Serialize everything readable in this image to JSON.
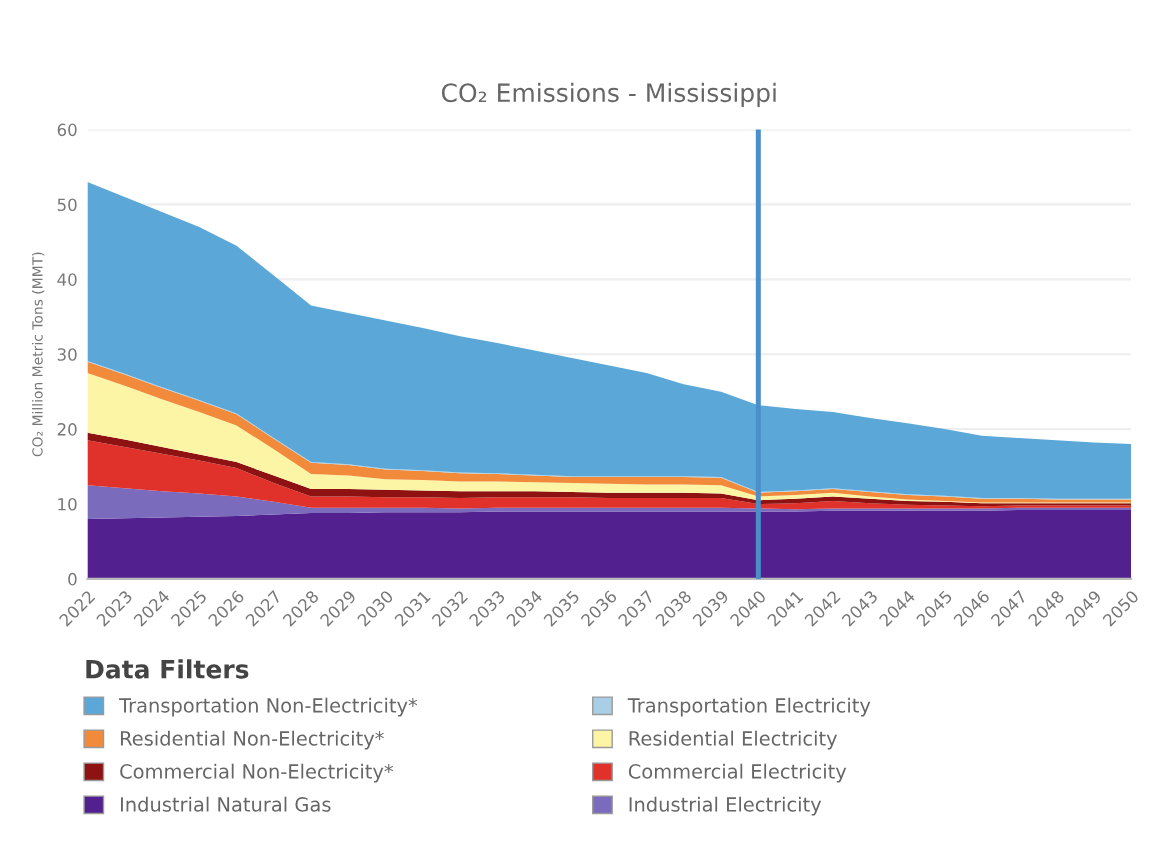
{
  "chart_data": {
    "type": "area",
    "title": "CO₂ Emissions - Mississippi",
    "ylabel": "CO₂ Million Metric Tons (MMT)",
    "legend_title": "Data Filters",
    "stacked": true,
    "legend": "bottom",
    "grid": "y",
    "x": [
      2022,
      2023,
      2024,
      2025,
      2026,
      2027,
      2028,
      2029,
      2030,
      2031,
      2032,
      2033,
      2034,
      2035,
      2036,
      2037,
      2038,
      2039,
      2040,
      2041,
      2042,
      2043,
      2044,
      2045,
      2046,
      2047,
      2048,
      2049,
      2050
    ],
    "xlim": [
      2022,
      2050
    ],
    "xticks": [
      2022,
      2023,
      2024,
      2025,
      2026,
      2027,
      2028,
      2029,
      2030,
      2031,
      2032,
      2033,
      2034,
      2035,
      2036,
      2037,
      2038,
      2039,
      2040,
      2041,
      2042,
      2043,
      2044,
      2045,
      2046,
      2047,
      2048,
      2049,
      2050
    ],
    "ylim": [
      0,
      60
    ],
    "yticks": [
      0,
      10,
      20,
      30,
      40,
      50,
      60
    ],
    "ref_lines": [
      {
        "axis": "x",
        "value": 2040,
        "color": "#4a8fc9"
      }
    ],
    "series": [
      {
        "name": "Industrial Natural Gas",
        "color": "#52208f",
        "values": [
          8.0,
          8.1,
          8.2,
          8.3,
          8.4,
          8.6,
          8.8,
          8.8,
          8.9,
          8.9,
          8.9,
          9.0,
          9.0,
          9.0,
          9.0,
          9.0,
          9.0,
          9.0,
          9.0,
          9.0,
          9.1,
          9.1,
          9.1,
          9.1,
          9.1,
          9.2,
          9.2,
          9.2,
          9.2
        ]
      },
      {
        "name": "Industrial Electricity",
        "color": "#7b6bbd",
        "values": [
          4.5,
          4.0,
          3.5,
          3.1,
          2.6,
          1.7,
          0.7,
          0.7,
          0.6,
          0.6,
          0.5,
          0.5,
          0.5,
          0.5,
          0.5,
          0.5,
          0.5,
          0.5,
          0.4,
          0.3,
          0.3,
          0.3,
          0.3,
          0.3,
          0.3,
          0.3,
          0.3,
          0.3,
          0.3
        ]
      },
      {
        "name": "Commercial Electricity",
        "color": "#e0322b",
        "values": [
          6.0,
          5.5,
          5.0,
          4.4,
          3.8,
          2.5,
          1.5,
          1.5,
          1.4,
          1.4,
          1.4,
          1.4,
          1.4,
          1.4,
          1.3,
          1.3,
          1.3,
          1.3,
          0.6,
          0.8,
          1.0,
          0.7,
          0.5,
          0.4,
          0.3,
          0.3,
          0.3,
          0.3,
          0.3
        ]
      },
      {
        "name": "Commercial Non-Electricity*",
        "color": "#8e1212",
        "values": [
          1.0,
          1.0,
          0.9,
          0.8,
          0.8,
          1.0,
          1.0,
          1.0,
          1.0,
          0.9,
          0.9,
          0.8,
          0.8,
          0.7,
          0.7,
          0.7,
          0.7,
          0.6,
          0.5,
          0.6,
          0.6,
          0.6,
          0.5,
          0.5,
          0.4,
          0.3,
          0.3,
          0.3,
          0.3
        ]
      },
      {
        "name": "Residential Electricity",
        "color": "#fcf5a6",
        "values": [
          8.0,
          7.2,
          6.4,
          5.7,
          4.9,
          3.5,
          2.0,
          1.8,
          1.4,
          1.4,
          1.3,
          1.3,
          1.2,
          1.2,
          1.2,
          1.1,
          1.1,
          1.1,
          0.5,
          0.5,
          0.5,
          0.3,
          0.2,
          0.1,
          0.1,
          0.1,
          0.1,
          0.1,
          0.1
        ]
      },
      {
        "name": "Residential Non-Electricity*",
        "color": "#f28a3c",
        "values": [
          1.5,
          1.5,
          1.5,
          1.5,
          1.5,
          1.4,
          1.5,
          1.4,
          1.3,
          1.2,
          1.1,
          1.0,
          0.9,
          0.8,
          0.9,
          1.0,
          1.0,
          1.0,
          0.5,
          0.5,
          0.5,
          0.6,
          0.6,
          0.6,
          0.5,
          0.5,
          0.4,
          0.4,
          0.4
        ]
      },
      {
        "name": "Transportation Electricity",
        "color": "#a8cfe6",
        "values": [
          0.1,
          0.1,
          0.1,
          0.1,
          0.1,
          0.1,
          0.1,
          0.1,
          0.1,
          0.1,
          0.1,
          0.1,
          0.1,
          0.1,
          0.1,
          0.1,
          0.1,
          0.1,
          0.1,
          0.1,
          0.1,
          0.1,
          0.1,
          0.1,
          0.1,
          0.1,
          0.1,
          0.1,
          0.1
        ]
      },
      {
        "name": "Transportation Non-Electricity*",
        "color": "#5ba8d8",
        "values": [
          23.9,
          23.6,
          23.4,
          23.1,
          22.4,
          21.7,
          20.9,
          20.2,
          19.8,
          19.0,
          18.2,
          17.4,
          16.6,
          15.8,
          14.8,
          13.8,
          12.3,
          11.4,
          11.6,
          10.9,
          10.2,
          9.8,
          9.5,
          8.9,
          8.3,
          8.0,
          7.8,
          7.5,
          7.3
        ]
      }
    ]
  }
}
